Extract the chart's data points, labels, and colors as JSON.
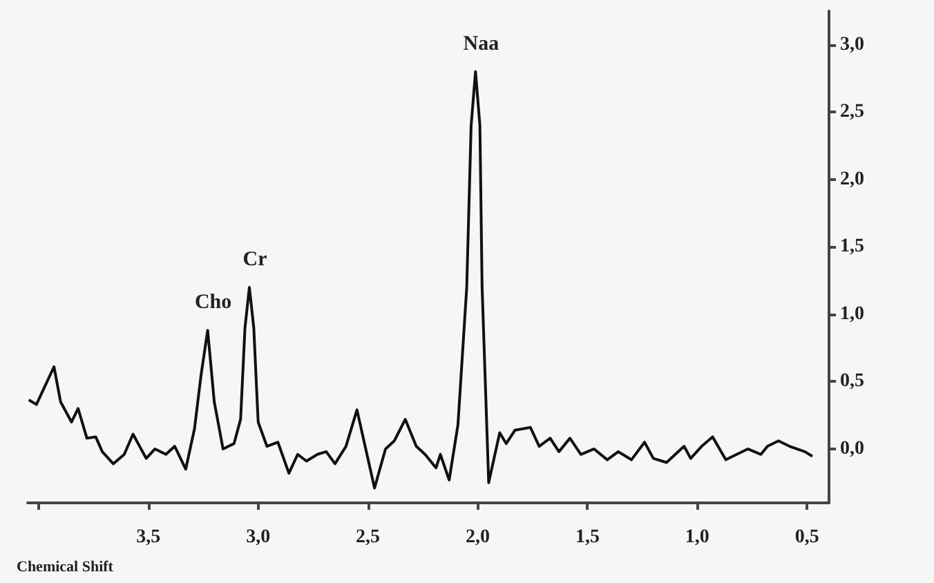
{
  "chart_data": {
    "type": "line",
    "xlabel": "Chemical Shift",
    "xlim": [
      4.05,
      0.4
    ],
    "ylim": [
      -0.4,
      3.25
    ],
    "xticks": [
      {
        "value": 4,
        "label": null
      },
      {
        "value": 3.5,
        "label": "3,5"
      },
      {
        "value": 3,
        "label": "3,0"
      },
      {
        "value": 2.5,
        "label": "2,5"
      },
      {
        "value": 2,
        "label": "2,0"
      },
      {
        "value": 1.5,
        "label": "1,5"
      },
      {
        "value": 1,
        "label": "1,0"
      },
      {
        "value": 0.5,
        "label": "0,5"
      }
    ],
    "yticks": [
      {
        "value": 0,
        "label": "0,0"
      },
      {
        "value": 0.5,
        "label": "0,5"
      },
      {
        "value": 1,
        "label": "1,0"
      },
      {
        "value": 1.5,
        "label": "1,5"
      },
      {
        "value": 2,
        "label": "2,0"
      },
      {
        "value": 2.5,
        "label": "2,5"
      },
      {
        "value": 3,
        "label": "3,0"
      }
    ],
    "grid": false,
    "annotations": [
      {
        "text": "Cho",
        "x": 3.23,
        "y": 0.88
      },
      {
        "text": "Cr",
        "x": 3.04,
        "y": 1.2
      },
      {
        "text": "Naa",
        "x": 2.01,
        "y": 2.8
      }
    ],
    "series": [
      {
        "color": "#111111",
        "x": [
          4.04,
          4.01,
          3.93,
          3.9,
          3.85,
          3.82,
          3.78,
          3.74,
          3.71,
          3.66,
          3.61,
          3.57,
          3.51,
          3.47,
          3.42,
          3.38,
          3.33,
          3.29,
          3.26,
          3.23,
          3.2,
          3.16,
          3.11,
          3.08,
          3.06,
          3.04,
          3.02,
          3.0,
          2.96,
          2.91,
          2.86,
          2.82,
          2.78,
          2.73,
          2.69,
          2.65,
          2.6,
          2.55,
          2.51,
          2.47,
          2.42,
          2.38,
          2.33,
          2.28,
          2.24,
          2.19,
          2.17,
          2.13,
          2.09,
          2.05,
          2.03,
          2.01,
          1.99,
          1.98,
          1.95,
          1.9,
          1.87,
          1.83,
          1.76,
          1.72,
          1.67,
          1.63,
          1.58,
          1.53,
          1.47,
          1.41,
          1.36,
          1.3,
          1.24,
          1.2,
          1.14,
          1.06,
          1.03,
          0.98,
          0.93,
          0.87,
          0.82,
          0.77,
          0.71,
          0.68,
          0.63,
          0.58,
          0.51,
          0.48
        ],
        "values": [
          0.36,
          0.33,
          0.61,
          0.35,
          0.2,
          0.3,
          0.08,
          0.09,
          -0.02,
          -0.11,
          -0.04,
          0.11,
          -0.07,
          0.0,
          -0.04,
          0.02,
          -0.15,
          0.15,
          0.55,
          0.88,
          0.35,
          0.0,
          0.04,
          0.22,
          0.9,
          1.2,
          0.9,
          0.2,
          0.02,
          0.05,
          -0.18,
          -0.04,
          -0.09,
          -0.04,
          -0.02,
          -0.11,
          0.02,
          0.29,
          0.0,
          -0.29,
          0.0,
          0.06,
          0.22,
          0.02,
          -0.04,
          -0.14,
          -0.04,
          -0.23,
          0.18,
          1.2,
          2.4,
          2.8,
          2.4,
          1.2,
          -0.25,
          0.12,
          0.04,
          0.14,
          0.16,
          0.02,
          0.08,
          -0.02,
          0.08,
          -0.04,
          0.0,
          -0.08,
          -0.02,
          -0.08,
          0.05,
          -0.07,
          -0.1,
          0.02,
          -0.07,
          0.02,
          0.09,
          -0.08,
          -0.04,
          0.0,
          -0.04,
          0.02,
          0.06,
          0.02,
          -0.02,
          -0.05
        ]
      }
    ]
  }
}
